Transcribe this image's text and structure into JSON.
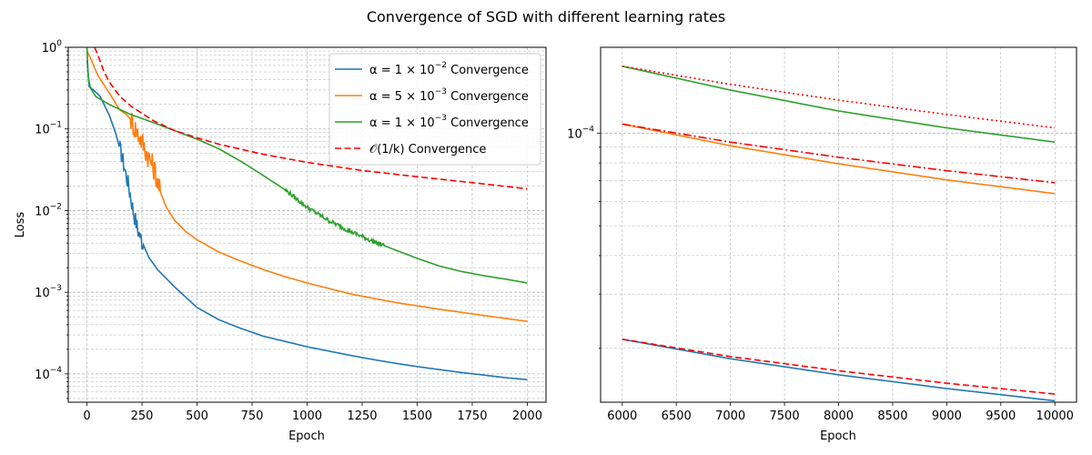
{
  "title": "Convergence of SGD with different learning rates",
  "colors": {
    "blue": "#1f77b4",
    "orange": "#ff7f0e",
    "green": "#2ca02c",
    "red": "#ff0000",
    "grid": "#b0b0b0"
  },
  "chart_data": [
    {
      "type": "line",
      "yscale": "log",
      "xlabel": "Epoch",
      "ylabel": "Loss",
      "xlim": [
        -85,
        2085
      ],
      "ylim": [
        4.5e-05,
        1
      ],
      "xticks": [
        "0",
        "250",
        "500",
        "750",
        "1000",
        "1250",
        "1500",
        "1750",
        "2000"
      ],
      "ytick_mantissa": "10",
      "ytick_exponents": [
        "−4",
        "−3",
        "−2",
        "−1",
        "0"
      ],
      "grid": true,
      "legend_position": "top-right",
      "legend": [
        {
          "key": "a1e2",
          "prefix": "α = 1 × 10",
          "exp": "−2",
          "suffix": " Convergence",
          "color": "blue",
          "dash": "solid"
        },
        {
          "key": "a5e3",
          "prefix": "α = 5 × 10",
          "exp": "−3",
          "suffix": " Convergence",
          "color": "orange",
          "dash": "solid"
        },
        {
          "key": "a1e3",
          "prefix": "α = 1 × 10",
          "exp": "−3",
          "suffix": " Convergence",
          "color": "green",
          "dash": "solid"
        },
        {
          "key": "o1k",
          "prefix": "𝒪(1/k)",
          "exp": "",
          "suffix": " Convergence",
          "color": "red",
          "dash": "dashed"
        }
      ],
      "series": [
        {
          "name": "α = 1 × 10^-2 Convergence",
          "color": "blue",
          "dash": "solid",
          "noise": [
            [
              150,
              255,
              0.25
            ]
          ],
          "x": [
            0,
            10,
            30,
            60,
            100,
            130,
            160,
            190,
            210,
            230,
            250,
            280,
            320,
            400,
            500,
            600,
            700,
            800,
            900,
            1000,
            1100,
            1200,
            1300,
            1400,
            1500,
            1600,
            1700,
            1800,
            1900,
            2000
          ],
          "y": [
            0.7,
            0.33,
            0.3,
            0.25,
            0.15,
            0.09,
            0.045,
            0.02,
            0.01,
            0.006,
            0.0042,
            0.0027,
            0.0019,
            0.00115,
            0.00065,
            0.00046,
            0.00036,
            0.00029,
            0.00025,
            0.000215,
            0.00019,
            0.000168,
            0.00015,
            0.000135,
            0.000123,
            0.000113,
            0.000104,
            9.7e-05,
            9e-05,
            8.5e-05
          ]
        },
        {
          "name": "α = 5 × 10^-3 Convergence",
          "color": "orange",
          "dash": "solid",
          "noise": [
            [
              200,
              330,
              0.35
            ]
          ],
          "x": [
            0,
            20,
            50,
            100,
            150,
            180,
            200,
            220,
            240,
            260,
            290,
            310,
            330,
            360,
            400,
            450,
            500,
            600,
            700,
            800,
            900,
            1000,
            1200,
            1400,
            1600,
            1800,
            2000
          ],
          "y": [
            0.9,
            0.7,
            0.45,
            0.28,
            0.17,
            0.15,
            0.13,
            0.1,
            0.08,
            0.06,
            0.04,
            0.03,
            0.018,
            0.011,
            0.0075,
            0.0055,
            0.0044,
            0.0031,
            0.0024,
            0.0019,
            0.00155,
            0.0013,
            0.00095,
            0.00075,
            0.00062,
            0.00052,
            0.00044
          ]
        },
        {
          "name": "α = 1 × 10^-3 Convergence",
          "color": "green",
          "dash": "solid",
          "noise": [
            [
              900,
              1350,
              0.06
            ]
          ],
          "x": [
            0,
            5,
            15,
            40,
            100,
            200,
            300,
            400,
            500,
            600,
            700,
            800,
            900,
            1000,
            1100,
            1200,
            1300,
            1400,
            1500,
            1600,
            1700,
            1800,
            1900,
            2000
          ],
          "y": [
            1,
            0.45,
            0.32,
            0.25,
            0.2,
            0.15,
            0.12,
            0.095,
            0.075,
            0.057,
            0.04,
            0.027,
            0.018,
            0.011,
            0.0075,
            0.0055,
            0.0042,
            0.0033,
            0.0026,
            0.0021,
            0.0018,
            0.0016,
            0.00145,
            0.0013
          ]
        },
        {
          "name": "O(1/k) Convergence",
          "color": "red",
          "dash": "dashed",
          "noise": [],
          "x": [
            35,
            50,
            75,
            100,
            150,
            200,
            300,
            400,
            500,
            600,
            800,
            1000,
            1250,
            1500,
            1750,
            2000
          ],
          "y": [
            1.0,
            0.8,
            0.52,
            0.38,
            0.25,
            0.19,
            0.127,
            0.095,
            0.078,
            0.065,
            0.049,
            0.039,
            0.031,
            0.026,
            0.022,
            0.0185
          ]
        }
      ]
    },
    {
      "type": "line",
      "yscale": "log",
      "xlabel": "Epoch",
      "ylabel": "",
      "xlim": [
        5800,
        10200
      ],
      "ylim": [
        1.336e-05,
        0.00019
      ],
      "xticks": [
        "6000",
        "6500",
        "7000",
        "7500",
        "8000",
        "8500",
        "9000",
        "9500",
        "10000"
      ],
      "ytick_mantissa": "10",
      "ytick_exponents": [
        "−4"
      ],
      "grid": true,
      "series": [
        {
          "name": "blue",
          "color": "blue",
          "dash": "solid",
          "x": [
            6000,
            7000,
            8000,
            9000,
            10000
          ],
          "y": [
            2.14e-05,
            1.85e-05,
            1.64e-05,
            1.48e-05,
            1.35e-05
          ]
        },
        {
          "name": "red dashed",
          "color": "red",
          "dash": "dashed",
          "x": [
            6000,
            7000,
            8000,
            9000,
            10000
          ],
          "y": [
            2.14e-05,
            1.88e-05,
            1.69e-05,
            1.54e-05,
            1.42e-05
          ]
        },
        {
          "name": "orange",
          "color": "orange",
          "dash": "solid",
          "x": [
            6000,
            7000,
            8000,
            9000,
            10000
          ],
          "y": [
            0.000107,
            9.1e-05,
            7.95e-05,
            7.05e-05,
            6.36e-05
          ]
        },
        {
          "name": "red dash-dot",
          "color": "red",
          "dash": "dashdot",
          "x": [
            6000,
            7000,
            8000,
            9000,
            10000
          ],
          "y": [
            0.000107,
            9.35e-05,
            8.35e-05,
            7.55e-05,
            6.9e-05
          ]
        },
        {
          "name": "green",
          "color": "green",
          "dash": "solid",
          "x": [
            6000,
            7000,
            8000,
            9000,
            10000
          ],
          "y": [
            0.000165,
            0.000138,
            0.000118,
            0.000104,
            9.35e-05
          ]
        },
        {
          "name": "red dotted",
          "color": "red",
          "dash": "dotted",
          "x": [
            6000,
            7000,
            8000,
            9000,
            10000
          ],
          "y": [
            0.000165,
            0.000144,
            0.000128,
            0.000115,
            0.000104
          ]
        }
      ]
    }
  ]
}
